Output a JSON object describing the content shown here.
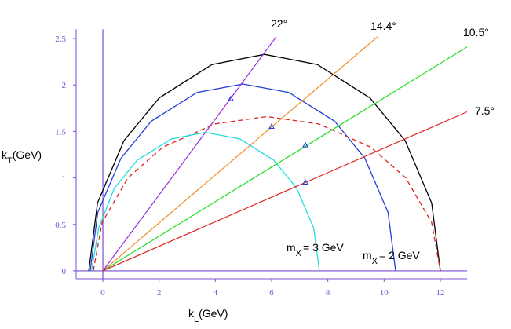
{
  "chart_data": {
    "type": "line",
    "x_label": {
      "main": "k",
      "sub": "L",
      "rest": "(GeV)"
    },
    "y_label": {
      "main": "k",
      "sub": "T",
      "rest": "(GeV)"
    },
    "xlim": [
      -0.95,
      12.95
    ],
    "ylim": [
      -0.085,
      2.6
    ],
    "xticks": [
      0,
      2,
      4,
      6,
      8,
      10,
      12
    ],
    "yticks": [
      0,
      0.5,
      1,
      1.5,
      2,
      2.5
    ],
    "axis_color": "#7b4fd6",
    "curves": [
      {
        "color": "#000000",
        "dash": false,
        "x": [
          -0.5,
          -0.19,
          0.75,
          2.0,
          3.88,
          5.75,
          7.63,
          9.5,
          10.75,
          11.69,
          12.0
        ],
        "y": [
          0,
          0.73,
          1.4,
          1.86,
          2.22,
          2.33,
          2.22,
          1.86,
          1.4,
          0.73,
          0
        ]
      },
      {
        "color": "#1f3fd6",
        "dash": false,
        "x": [
          -0.45,
          -0.18,
          0.64,
          1.72,
          3.35,
          4.98,
          6.61,
          8.24,
          9.32,
          10.14,
          10.41
        ],
        "y": [
          0,
          0.63,
          1.21,
          1.61,
          1.92,
          2.01,
          1.92,
          1.61,
          1.21,
          0.63,
          0
        ]
      },
      {
        "color": "#e02020",
        "dash": true,
        "x": [
          -0.34,
          -0.03,
          0.89,
          2.13,
          3.98,
          5.83,
          7.68,
          9.53,
          10.77,
          11.69,
          12.0
        ],
        "y": [
          0,
          0.52,
          1.0,
          1.33,
          1.58,
          1.66,
          1.58,
          1.33,
          1.0,
          0.52,
          0
        ]
      },
      {
        "color": "#22dddd",
        "dash": false,
        "x": [
          -0.4,
          -0.15,
          0.41,
          1.22,
          2.44,
          3.65,
          4.87,
          6.08,
          6.89,
          7.5,
          7.7
        ],
        "y": [
          0,
          0.46,
          0.89,
          1.19,
          1.42,
          1.49,
          1.42,
          1.19,
          0.89,
          0.46,
          0
        ]
      }
    ],
    "rays": [
      {
        "label": "22°",
        "color": "#9a2be2",
        "x": [
          0,
          6.17
        ],
        "y": [
          0,
          2.52
        ]
      },
      {
        "label": "14.4°",
        "color": "#f08a24",
        "x": [
          0,
          9.77
        ],
        "y": [
          0,
          2.52
        ]
      },
      {
        "label": "10.5°",
        "color": "#22dd22",
        "x": [
          0,
          12.95
        ],
        "y": [
          0,
          2.41
        ]
      },
      {
        "label": "7.5°",
        "color": "#e02020",
        "x": [
          0,
          12.95
        ],
        "y": [
          0,
          1.71
        ]
      }
    ],
    "markers": {
      "color": "#1f3fd6",
      "x": [
        4.55,
        6.0,
        7.2,
        7.2
      ],
      "y": [
        1.85,
        1.55,
        1.35,
        0.95
      ]
    },
    "annotations": [
      {
        "main": "m",
        "sub": "X",
        "rest": "= 3 GeV"
      },
      {
        "main": "m",
        "sub": "X",
        "rest": "= 2 GeV"
      }
    ]
  }
}
